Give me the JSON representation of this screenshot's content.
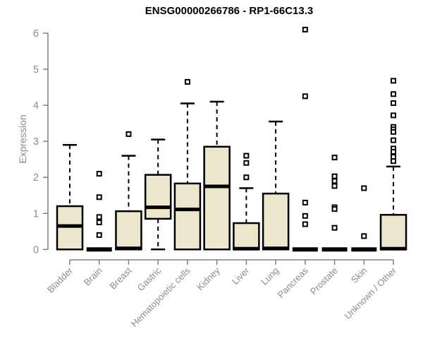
{
  "window": {
    "title": "Gene expression boxplot"
  },
  "colors": {
    "background": "#ffffff",
    "box_fill": "#ECE6CD",
    "box_border": "#000000",
    "median": "#000000",
    "whisker": "#000000",
    "outlier_border": "#000000",
    "outlier_fill": "#ffffff",
    "axis_line": "#7f7f7f",
    "axis_text": "#8c8c8c",
    "title_text": "#000000"
  },
  "chart_data": {
    "type": "boxplot",
    "title": "ENSG00000266786 - RP1-66C13.3",
    "xlabel": "",
    "ylabel": "Expression",
    "ylim": [
      0,
      6
    ],
    "yticks": [
      0,
      1,
      2,
      3,
      4,
      5,
      6
    ],
    "grid": "off",
    "legend": "none",
    "x_tick_rotation_deg": 45,
    "categories": [
      "Bladder",
      "Brain",
      "Breast",
      "Gastric",
      "Hematopoietic cells",
      "Kidney",
      "Liver",
      "Lung",
      "Pancreas",
      "Prostate",
      "Skin",
      "Unknown / Other"
    ],
    "series": [
      {
        "category": "Bladder",
        "whisker_low": 0,
        "q1": 0,
        "median": 0.65,
        "q3": 1.2,
        "whisker_high": 2.9,
        "outliers": []
      },
      {
        "category": "Brain",
        "whisker_low": 0,
        "q1": 0,
        "median": 0,
        "q3": 0,
        "whisker_high": 0,
        "outliers": [
          2.1,
          1.45,
          0.9,
          0.75,
          0.4
        ]
      },
      {
        "category": "Breast",
        "whisker_low": 0,
        "q1": 0,
        "median": 0.03,
        "q3": 1.06,
        "whisker_high": 2.6,
        "outliers": [
          3.2
        ]
      },
      {
        "category": "Gastric",
        "whisker_low": 0,
        "q1": 0.85,
        "median": 1.17,
        "q3": 2.07,
        "whisker_high": 3.05,
        "outliers": []
      },
      {
        "category": "Hematopoietic cells",
        "whisker_low": 0,
        "q1": 0,
        "median": 1.11,
        "q3": 1.83,
        "whisker_high": 4.05,
        "outliers": [
          4.65
        ]
      },
      {
        "category": "Kidney",
        "whisker_low": 0,
        "q1": 0,
        "median": 1.75,
        "q3": 2.85,
        "whisker_high": 4.1,
        "outliers": []
      },
      {
        "category": "Liver",
        "whisker_low": 0,
        "q1": 0,
        "median": 0.02,
        "q3": 0.73,
        "whisker_high": 1.7,
        "outliers": [
          2.6,
          2.4,
          2.0
        ]
      },
      {
        "category": "Lung",
        "whisker_low": 0,
        "q1": 0,
        "median": 0.03,
        "q3": 1.55,
        "whisker_high": 3.55,
        "outliers": []
      },
      {
        "category": "Pancreas",
        "whisker_low": 0,
        "q1": 0,
        "median": 0,
        "q3": 0,
        "whisker_high": 0,
        "outliers": [
          6.1,
          4.25,
          1.3,
          0.93,
          0.7
        ]
      },
      {
        "category": "Prostate",
        "whisker_low": 0,
        "q1": 0,
        "median": 0,
        "q3": 0,
        "whisker_high": 0,
        "outliers": [
          2.55,
          2.03,
          1.9,
          1.76,
          1.17,
          1.12,
          0.6
        ]
      },
      {
        "category": "Skin",
        "whisker_low": 0,
        "q1": 0,
        "median": 0,
        "q3": 0,
        "whisker_high": 0,
        "outliers": [
          1.7,
          0.37
        ]
      },
      {
        "category": "Unknown / Other",
        "whisker_low": 0,
        "q1": 0,
        "median": 0.02,
        "q3": 0.96,
        "whisker_high": 2.3,
        "outliers": [
          4.68,
          4.31,
          4.06,
          3.72,
          3.4,
          3.33,
          3.26,
          3.03,
          2.8,
          2.71,
          2.57,
          2.45
        ]
      }
    ]
  }
}
